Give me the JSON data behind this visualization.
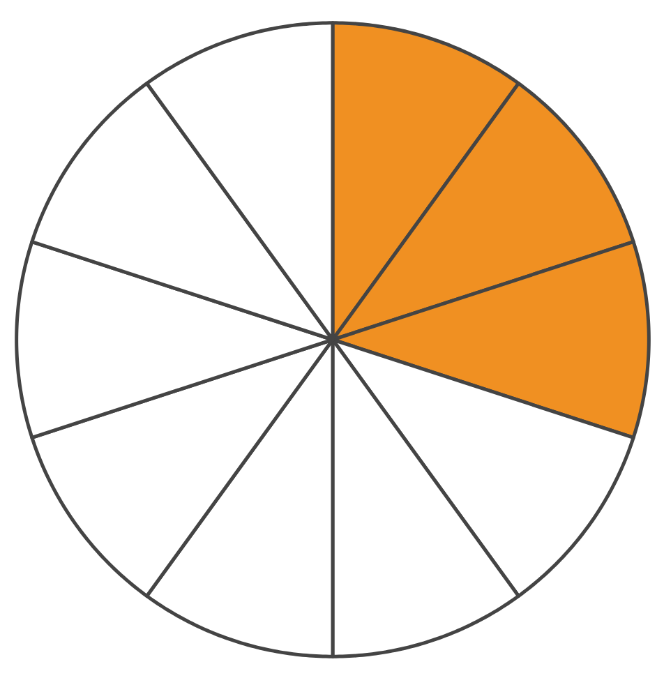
{
  "chart_data": {
    "type": "pie",
    "categories": [
      null,
      null,
      null,
      null,
      null,
      null,
      null,
      null,
      null,
      null
    ],
    "values": [
      10,
      10,
      10,
      10,
      10,
      10,
      10,
      10,
      10,
      10
    ],
    "colors": [
      "#f09022",
      "#f09022",
      "#f09022",
      "#ffffff",
      "#ffffff",
      "#ffffff",
      "#ffffff",
      "#ffffff",
      "#ffffff",
      "#ffffff"
    ]
  }
}
